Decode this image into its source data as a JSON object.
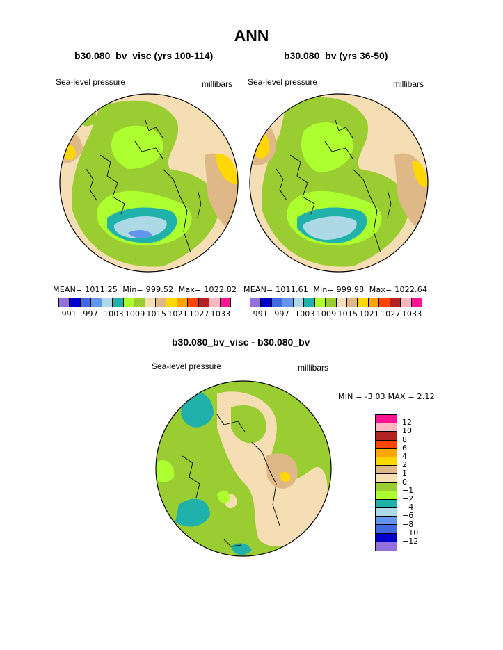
{
  "title": "ANN",
  "panels": [
    {
      "title": "b30.080_bv_visc (yrs 100-114)",
      "variable": "Sea-level pressure",
      "units": "millibars",
      "stats": {
        "mean": "1011.25",
        "min": "999.52",
        "max": "1022.82"
      }
    },
    {
      "title": "b30.080_bv (yrs 36-50)",
      "variable": "Sea-level pressure",
      "units": "millibars",
      "stats": {
        "mean": "1011.61",
        "min": "999.98",
        "max": "1022.64"
      }
    }
  ],
  "stat_labels": {
    "mean": "MEAN=",
    "min": "Min=",
    "max": "Max="
  },
  "diff_panel": {
    "title": "b30.080_bv_visc - b30.080_bv",
    "variable": "Sea-level pressure",
    "units": "millibars",
    "min_label": "MIN =",
    "min": "-3.03",
    "max_label": "MAX =",
    "max": "2.12"
  },
  "colorbar_top": {
    "colors": [
      "#9370db",
      "#0000cd",
      "#4169e1",
      "#6495ed",
      "#add8e6",
      "#20b2aa",
      "#adff2f",
      "#9acd32",
      "#f5deb3",
      "#deb887",
      "#ffd700",
      "#ffa500",
      "#ff4500",
      "#b22222",
      "#ffb6c1",
      "#ff1493"
    ],
    "labels": [
      "991",
      "997",
      "1003",
      "1009",
      "1015",
      "1021",
      "1027",
      "1033"
    ]
  },
  "colorbar_diff": {
    "colors": [
      "#ff1493",
      "#ffb6c1",
      "#b22222",
      "#ff4500",
      "#ffa500",
      "#ffd700",
      "#deb887",
      "#f5deb3",
      "#9acd32",
      "#adff2f",
      "#20b2aa",
      "#add8e6",
      "#6495ed",
      "#4169e1",
      "#0000cd",
      "#9370db"
    ],
    "labels": [
      "12",
      "10",
      "8",
      "6",
      "4",
      "2",
      "1",
      "0",
      "−1",
      "−2",
      "−4",
      "−6",
      "−8",
      "−10",
      "−12"
    ]
  }
}
